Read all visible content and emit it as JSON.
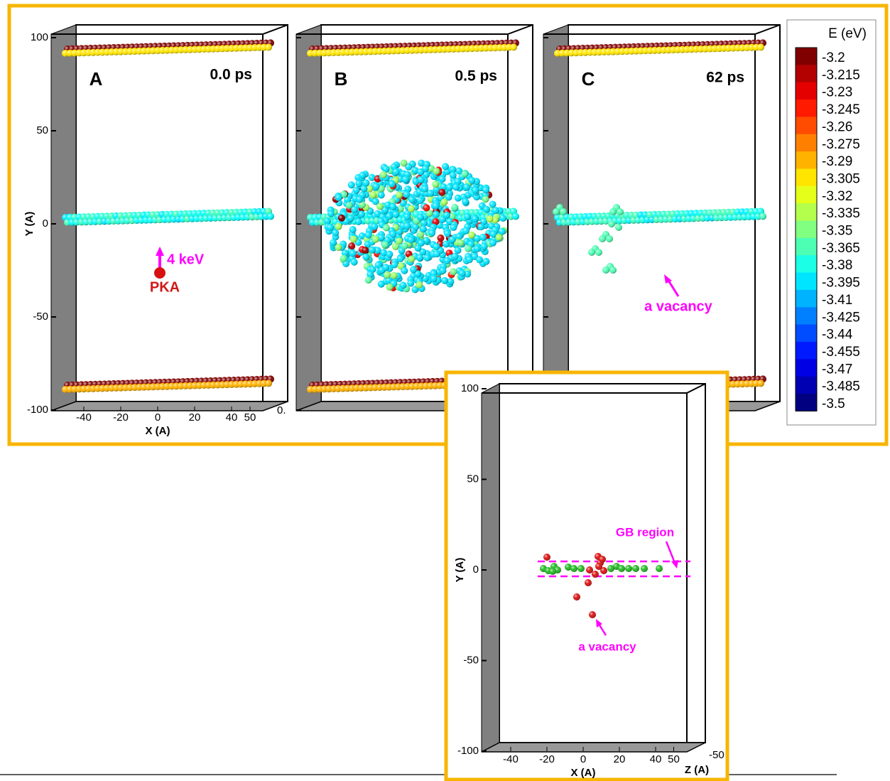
{
  "panels": [
    {
      "label": "A",
      "time": "0.0 ps"
    },
    {
      "label": "B",
      "time": "0.5 ps"
    },
    {
      "label": "C",
      "time": "62 ps"
    }
  ],
  "main_axes": {
    "y_label": "Y (A)",
    "x_label": "X (A)",
    "yticks": [
      100,
      50,
      0,
      -50,
      -100
    ],
    "xticks": [
      -40,
      -20,
      0,
      20,
      40,
      50
    ],
    "z_tick": "0."
  },
  "annotations": {
    "energy": "4 keV",
    "pka": "PKA",
    "vacancy": "a vacancy"
  },
  "colorbar": {
    "title": "E (eV)",
    "labels": [
      -3.2,
      -3.215,
      -3.23,
      -3.245,
      -3.26,
      -3.275,
      -3.29,
      -3.305,
      -3.32,
      -3.335,
      -3.35,
      -3.365,
      -3.38,
      -3.395,
      -3.41,
      -3.425,
      -3.44,
      -3.455,
      -3.47,
      -3.485,
      -3.5
    ]
  },
  "inset": {
    "y_label": "Y (A)",
    "x_label": "X (A)",
    "z_label": "Z (A)",
    "yticks": [
      100,
      50,
      0,
      -50,
      -100
    ],
    "xticks": [
      -40,
      -20,
      0,
      20,
      40,
      50
    ],
    "zticks": [
      -50
    ],
    "gb_label": "GB region",
    "vacancy": "a vacancy"
  }
}
